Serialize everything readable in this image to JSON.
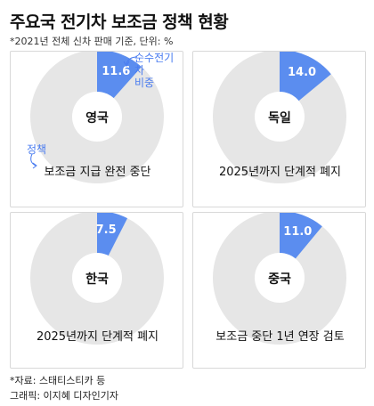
{
  "title": "주요국 전기차 보조금 정책 현황",
  "subtitle": "*2021년 전체 신차 판매 기준, 단위: %",
  "annotations": {
    "share_label_line1": "순수전기차",
    "share_label_line2": "비중",
    "policy_label": "정책"
  },
  "colors": {
    "ev_share": "#5b8def",
    "rest": "#e6e6e6",
    "annotation": "#4a7cf0"
  },
  "footer": {
    "source": "*자료: 스태티스티카 등",
    "graphic": "그래픽: 이지혜 디자인기자"
  },
  "chart_data": [
    {
      "type": "pie",
      "country": "영국",
      "value": 11.6,
      "value_label": "11.6",
      "policy": "보조금 지급 완전 중단"
    },
    {
      "type": "pie",
      "country": "독일",
      "value": 14.0,
      "value_label": "14.0",
      "policy": "2025년까지 단계적 폐지"
    },
    {
      "type": "pie",
      "country": "한국",
      "value": 7.5,
      "value_label": "7.5",
      "policy": "2025년까지 단계적 폐지"
    },
    {
      "type": "pie",
      "country": "중국",
      "value": 11.0,
      "value_label": "11.0",
      "policy": "보조금 중단 1년 연장 검토"
    }
  ]
}
